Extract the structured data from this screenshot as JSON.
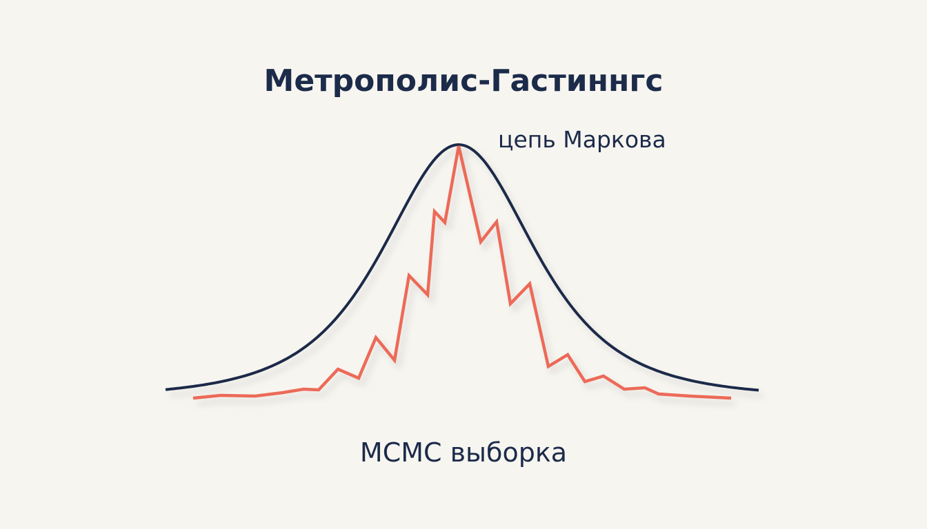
{
  "title": "Метрополис-Гастиннгс",
  "curve_label": "цепь Маркова",
  "caption": "MCMC выборка"
}
